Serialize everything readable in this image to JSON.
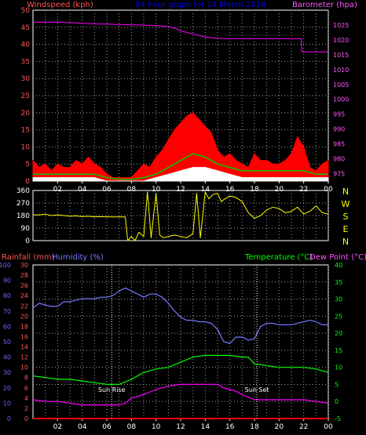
{
  "colors": {
    "background": "#000000",
    "frame": "#ffffff",
    "grid": "#a0a0a0",
    "wind_gust": "#ff0000",
    "wind_avg": "#00cc00",
    "wind_low": "#ffffff",
    "barometer": "#ff00ff",
    "direction": "#ffff00",
    "humidity": "#7777ff",
    "temperature": "#00ff00",
    "dewpoint": "#ff00ff",
    "rainfall": "#ff0000",
    "sun_marker": "#ffffff",
    "title": "#0000ff",
    "rain_axis": "#ff5555",
    "humidity_axis": "#6666ff",
    "temp_axis": "#00ff00",
    "compass": "#ffff00"
  },
  "chart_data": [
    {
      "type": "line",
      "title": "24 hour graph for 14 March 2016",
      "ylabel": "Windspeed (kph)",
      "y2label": "Barometer (hpa)",
      "xlim": [
        0,
        24
      ],
      "x_ticks": [
        "02",
        "04",
        "06",
        "08",
        "10",
        "12",
        "14",
        "16",
        "18",
        "20",
        "22",
        "00"
      ],
      "ylim": [
        0,
        50
      ],
      "y_ticks": [
        0,
        5,
        10,
        15,
        20,
        25,
        30,
        35,
        40,
        45,
        50
      ],
      "y2lim": [
        972.5,
        1030
      ],
      "y2_ticks": [
        975,
        980,
        985,
        990,
        995,
        1000,
        1005,
        1010,
        1015,
        1020,
        1025
      ],
      "grid": true,
      "series": [
        {
          "name": "Barometer",
          "axis": "right",
          "x": [
            0,
            1,
            2,
            3,
            4,
            5,
            6,
            7,
            8,
            9,
            10,
            11,
            11.5,
            12,
            13,
            14,
            15,
            16,
            17,
            18,
            19,
            20,
            21,
            21.8,
            21.85,
            22,
            23,
            24
          ],
          "y": [
            1026,
            1026,
            1026,
            1025.8,
            1025.6,
            1025.4,
            1025.3,
            1025.2,
            1025.1,
            1025,
            1024.8,
            1024.5,
            1024,
            1023,
            1022,
            1021,
            1020.5,
            1020.4,
            1020.4,
            1020.4,
            1020.4,
            1020.4,
            1020.4,
            1020.4,
            1016,
            1016,
            1016,
            1016
          ]
        },
        {
          "name": "Gust",
          "x": [
            0,
            0.5,
            1,
            1.5,
            2,
            2.5,
            3,
            3.5,
            4,
            4.5,
            5,
            5.5,
            6,
            6.5,
            7,
            7.5,
            8,
            8.5,
            9,
            9.5,
            10,
            10.5,
            11,
            11.5,
            12,
            12.5,
            13,
            13.5,
            14,
            14.5,
            15,
            15.5,
            16,
            16.5,
            17,
            17.5,
            18,
            18.5,
            19,
            19.5,
            20,
            20.5,
            21,
            21.5,
            22,
            22.5,
            23,
            23.5,
            24
          ],
          "y": [
            6,
            4,
            5,
            3,
            5,
            4,
            4,
            6,
            5,
            7,
            5,
            4,
            2,
            1,
            1,
            1,
            1,
            3,
            5,
            4,
            7,
            9,
            12,
            15,
            17,
            19,
            20,
            18,
            16,
            14,
            9,
            7,
            8,
            6,
            5,
            4,
            8,
            6,
            6,
            5,
            5,
            6,
            8,
            13,
            10,
            4,
            3,
            5,
            6
          ]
        },
        {
          "name": "Average",
          "x": [
            0,
            1,
            2,
            3,
            4,
            5,
            6,
            7,
            8,
            9,
            10,
            11,
            12,
            13,
            14,
            15,
            16,
            17,
            18,
            19,
            20,
            21,
            22,
            23,
            24
          ],
          "y": [
            2,
            2,
            2,
            2,
            2,
            2,
            1,
            0.5,
            0.5,
            1,
            2,
            4,
            6,
            8,
            7,
            5,
            4,
            3,
            3,
            3,
            3,
            3,
            3,
            2,
            2
          ]
        },
        {
          "name": "Lull",
          "x": [
            0,
            1,
            2,
            3,
            4,
            5,
            6,
            7,
            8,
            9,
            10,
            11,
            12,
            13,
            14,
            15,
            16,
            17,
            18,
            19,
            20,
            21,
            22,
            23,
            24
          ],
          "y": [
            1,
            1,
            1,
            1,
            1,
            1,
            0,
            0,
            0,
            0,
            1,
            2,
            3,
            4,
            4,
            3,
            2,
            1,
            1,
            1,
            1,
            1,
            1,
            1,
            1
          ]
        }
      ]
    },
    {
      "type": "line",
      "xlim": [
        0,
        24
      ],
      "ylim": [
        0,
        360
      ],
      "y_ticks": [
        0,
        90,
        180,
        270,
        360
      ],
      "compass": [
        "N",
        "W",
        "S",
        "E",
        "N"
      ],
      "grid": true,
      "series": [
        {
          "name": "Wind direction",
          "x": [
            0,
            0.5,
            1,
            1.5,
            2,
            2.5,
            3,
            3.5,
            4,
            4.5,
            5,
            5.5,
            6,
            6.5,
            7,
            7.5,
            7.7,
            8,
            8.3,
            8.6,
            9,
            9.3,
            9.6,
            10,
            10.3,
            10.6,
            11,
            11.5,
            12,
            12.5,
            13,
            13.3,
            13.6,
            14,
            14.3,
            14.6,
            15,
            15.3,
            15.6,
            16,
            16.5,
            17,
            17.5,
            18,
            18.5,
            19,
            19.5,
            20,
            20.5,
            21,
            21.5,
            22,
            22.5,
            23,
            23.5,
            24
          ],
          "y": [
            185,
            185,
            190,
            180,
            185,
            180,
            175,
            178,
            172,
            175,
            170,
            172,
            170,
            170,
            170,
            170,
            0,
            30,
            0,
            60,
            30,
            350,
            20,
            340,
            40,
            20,
            30,
            40,
            30,
            20,
            50,
            340,
            20,
            350,
            300,
            330,
            340,
            280,
            300,
            320,
            310,
            280,
            200,
            160,
            180,
            220,
            240,
            230,
            200,
            210,
            240,
            190,
            210,
            250,
            200,
            190
          ]
        }
      ]
    },
    {
      "type": "line",
      "ylabel": "Rainfall (mm)",
      "ylabel2": "Humidity (%)",
      "y2label": "Temperature (°C)",
      "y2label2": "Dew Point (°C)",
      "xlim": [
        0,
        24
      ],
      "x_ticks": [
        "02",
        "04",
        "06",
        "08",
        "10",
        "12",
        "14",
        "16",
        "18",
        "20",
        "22",
        "00"
      ],
      "rain_lim": [
        0,
        30
      ],
      "rain_ticks": [
        0,
        2,
        4,
        6,
        8,
        10,
        12,
        14,
        16,
        18,
        20,
        22,
        24,
        26,
        28,
        30
      ],
      "humidity_lim": [
        0,
        100
      ],
      "humidity_ticks": [
        0,
        10,
        20,
        30,
        40,
        50,
        60,
        70,
        80,
        90,
        100
      ],
      "temp_lim": [
        -5,
        40
      ],
      "temp_ticks": [
        -5,
        0,
        5,
        10,
        15,
        20,
        25,
        30,
        35,
        40
      ],
      "grid": true,
      "annotations": [
        {
          "text": "Sun Rise",
          "x": 6.4
        },
        {
          "text": "Sun Set",
          "x": 18.2
        }
      ],
      "series": [
        {
          "name": "Humidity",
          "axis": "humidity",
          "x": [
            0,
            0.5,
            1,
            1.5,
            2,
            2.5,
            3,
            3.5,
            4,
            4.5,
            5,
            5.5,
            6,
            6.5,
            7,
            7.5,
            8,
            8.5,
            9,
            9.5,
            10,
            10.5,
            11,
            11.5,
            12,
            12.5,
            13,
            13.5,
            14,
            14.5,
            15,
            15.5,
            16,
            16.5,
            17,
            17.5,
            18,
            18.5,
            19,
            19.5,
            20,
            20.5,
            21,
            21.5,
            22,
            22.5,
            23,
            23.5,
            24
          ],
          "y": [
            72,
            75,
            74,
            73,
            73,
            76,
            76,
            77,
            78,
            78,
            78,
            79,
            79,
            80,
            83,
            85,
            83,
            81,
            79,
            81,
            81,
            79,
            75,
            70,
            66,
            64,
            64,
            63,
            63,
            62,
            58,
            50,
            49,
            53,
            53,
            51,
            52,
            60,
            62,
            62,
            61,
            61,
            61,
            62,
            63,
            64,
            63,
            61,
            61
          ]
        },
        {
          "name": "Temperature",
          "axis": "temp",
          "x": [
            0,
            1,
            2,
            3,
            4,
            5,
            6,
            7,
            8,
            9,
            10,
            11,
            12,
            13,
            14,
            15,
            16,
            17,
            17.5,
            18,
            19,
            20,
            21,
            22,
            23,
            24
          ],
          "y": [
            7.5,
            7,
            6.5,
            6.5,
            6,
            5.5,
            5,
            5,
            6.5,
            8.5,
            9.5,
            10,
            11.5,
            13,
            13.5,
            13.5,
            13.5,
            13,
            13,
            11,
            10.5,
            10,
            10,
            10,
            9.5,
            8.5
          ]
        },
        {
          "name": "Dew Point",
          "axis": "temp",
          "x": [
            0,
            1,
            2,
            3,
            4,
            5,
            6,
            7,
            7.5,
            8,
            9,
            10,
            11,
            12,
            13,
            14,
            15,
            15.5,
            16,
            16.5,
            17,
            18,
            19,
            20,
            21,
            22,
            23,
            24
          ],
          "y": [
            0.5,
            0,
            0,
            -0.5,
            -1,
            -1,
            -1,
            -1,
            -0.5,
            1,
            2,
            3.5,
            4.5,
            5,
            5,
            5,
            5,
            4,
            3.5,
            3,
            2,
            0.5,
            0.5,
            0.5,
            0.5,
            0.5,
            0,
            -0.5
          ]
        },
        {
          "name": "Rainfall",
          "axis": "rain",
          "x": [
            0,
            24
          ],
          "y": [
            0,
            0
          ]
        }
      ]
    }
  ]
}
